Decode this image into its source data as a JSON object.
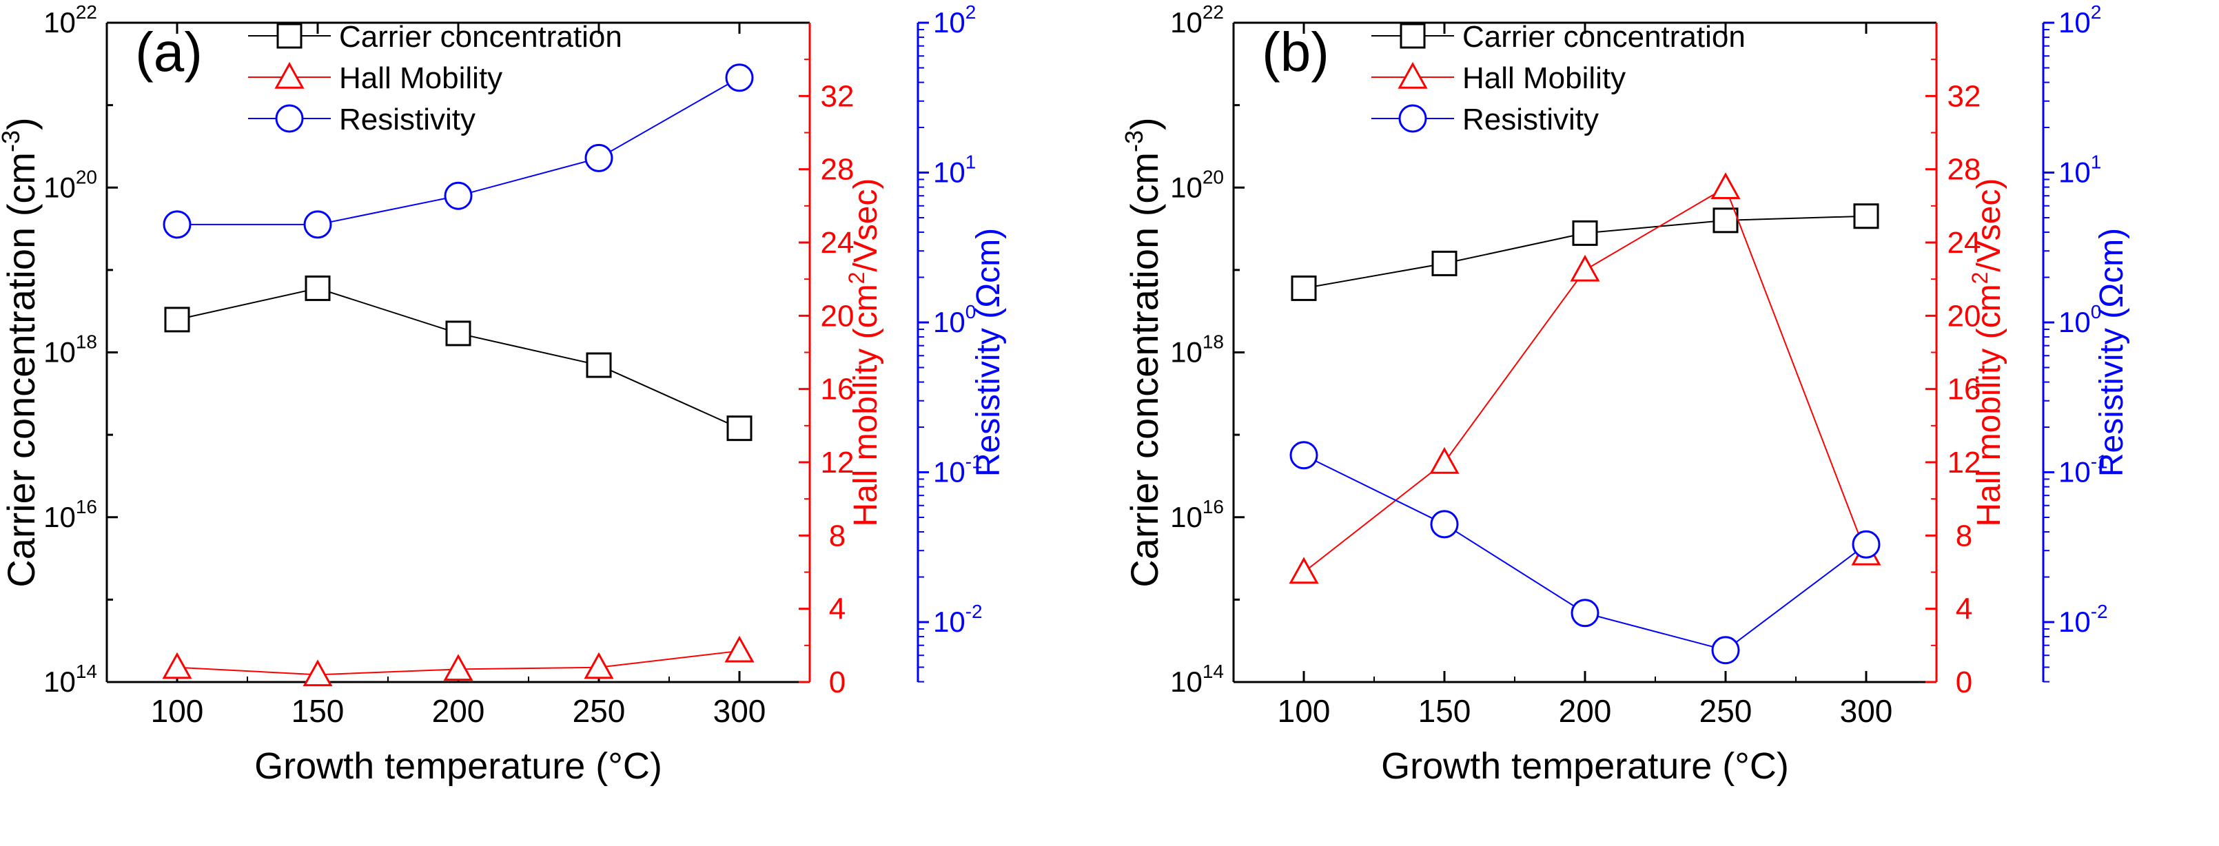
{
  "chart_data": [
    {
      "type": "line",
      "panel_label": "(a)",
      "xlabel": "Growth temperature (°C)",
      "x": [
        100,
        150,
        200,
        250,
        300
      ],
      "xticks": [
        "100",
        "150",
        "200",
        "250",
        "300"
      ],
      "xlim": [
        75,
        325
      ],
      "axes": {
        "left": {
          "label_main": "Carrier concentration (cm",
          "label_sup": "-3",
          "label_end": ")",
          "scale": "log",
          "ylim_exp": [
            14,
            22
          ],
          "tick_exps": [
            "14",
            "16",
            "18",
            "20",
            "22"
          ],
          "color": "#000000"
        },
        "right1": {
          "label_main": "Hall mobility (cm",
          "label_sup": "2",
          "label_end": "/Vsec)",
          "scale": "linear",
          "ylim": [
            0,
            36
          ],
          "ticks": [
            "0",
            "4",
            "8",
            "12",
            "16",
            "20",
            "24",
            "28",
            "32"
          ],
          "color": "#ff0000"
        },
        "right2": {
          "label": "Resistivity (Ωcm)",
          "scale": "log",
          "ylim_exp": [
            -2.4,
            2
          ],
          "tick_exps": [
            "-2",
            "-1",
            "0",
            "1",
            "2"
          ],
          "color": "#0000ff"
        }
      },
      "series": [
        {
          "name": "Carrier concentration",
          "axis": "left",
          "marker": "square",
          "color": "#000000",
          "values": [
            2.5e+18,
            6e+18,
            1.7e+18,
            7e+17,
            1.2e+17
          ]
        },
        {
          "name": "Hall Mobility",
          "axis": "right1",
          "marker": "triangle",
          "color": "#ff0000",
          "values": [
            0.8,
            0.4,
            0.7,
            0.8,
            1.7
          ]
        },
        {
          "name": "Resistivity",
          "axis": "right2",
          "marker": "circle",
          "color": "#0000ff",
          "values": [
            4.5,
            4.5,
            7,
            12.5,
            43
          ]
        }
      ],
      "legend": [
        "Carrier concentration",
        "Hall Mobility",
        "Resistivity"
      ]
    },
    {
      "type": "line",
      "panel_label": "(b)",
      "xlabel": "Growth temperature (°C)",
      "x": [
        100,
        150,
        200,
        250,
        300
      ],
      "xticks": [
        "100",
        "150",
        "200",
        "250",
        "300"
      ],
      "xlim": [
        75,
        325
      ],
      "axes": {
        "left": {
          "label_main": "Carrier concentration (cm",
          "label_sup": "-3",
          "label_end": ")",
          "scale": "log",
          "ylim_exp": [
            14,
            22
          ],
          "tick_exps": [
            "14",
            "16",
            "18",
            "20",
            "22"
          ],
          "color": "#000000"
        },
        "right1": {
          "label_main": "Hall mobility (cm",
          "label_sup": "2",
          "label_end": "/Vsec)",
          "scale": "linear",
          "ylim": [
            0,
            36
          ],
          "ticks": [
            "0",
            "4",
            "8",
            "12",
            "16",
            "20",
            "24",
            "28",
            "32"
          ],
          "color": "#ff0000"
        },
        "right2": {
          "label": "Resistivity (Ωcm)",
          "scale": "log",
          "ylim_exp": [
            -2.4,
            2
          ],
          "tick_exps": [
            "-2",
            "-1",
            "0",
            "1",
            "2"
          ],
          "color": "#0000ff"
        }
      },
      "series": [
        {
          "name": "Carrier concentration",
          "axis": "left",
          "marker": "square",
          "color": "#000000",
          "values": [
            6e+18,
            1.2e+19,
            2.8e+19,
            4e+19,
            4.5e+19
          ]
        },
        {
          "name": "Hall Mobility",
          "axis": "right1",
          "marker": "triangle",
          "color": "#ff0000",
          "values": [
            6,
            12,
            22.5,
            27,
            7
          ]
        },
        {
          "name": "Resistivity",
          "axis": "right2",
          "marker": "circle",
          "color": "#0000ff",
          "values": [
            0.13,
            0.045,
            0.0115,
            0.0065,
            0.033
          ]
        }
      ],
      "legend": [
        "Carrier concentration",
        "Hall Mobility",
        "Resistivity"
      ]
    }
  ]
}
